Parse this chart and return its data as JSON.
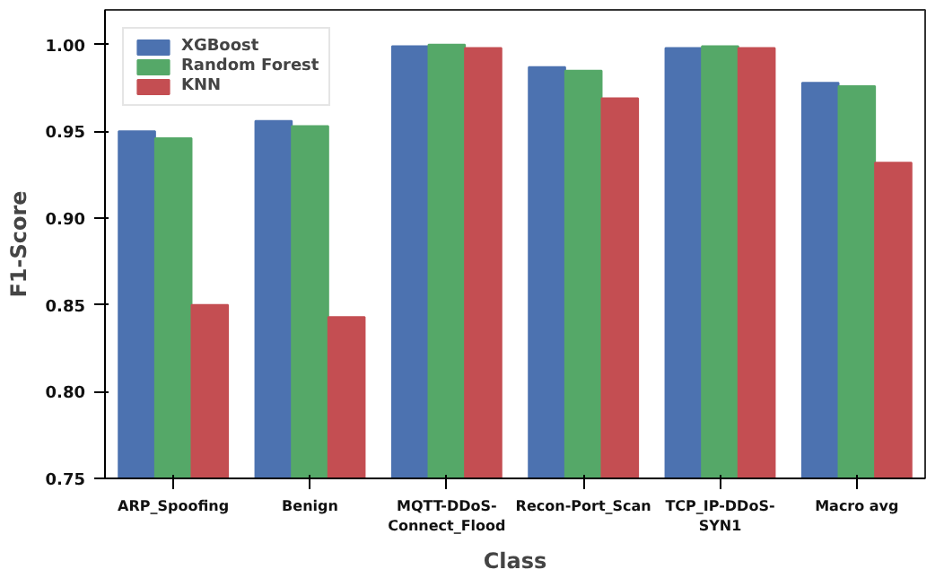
{
  "chart_data": {
    "type": "bar",
    "xlabel": "Class",
    "ylabel": "F1-Score",
    "categories": [
      "ARP_Spoofing",
      "Benign",
      "MQTT-DDoS-\nConnect_Flood",
      "Recon-Port_Scan",
      "TCP_IP-DDoS-\nSYN1",
      "Macro avg"
    ],
    "series": [
      {
        "name": "XGBoost",
        "color": "#4c72b0",
        "values": [
          0.95,
          0.956,
          0.999,
          0.987,
          0.998,
          0.978
        ]
      },
      {
        "name": "Random Forest",
        "color": "#55a868",
        "values": [
          0.946,
          0.953,
          1.0,
          0.985,
          0.999,
          0.976
        ]
      },
      {
        "name": "KNN",
        "color": "#c44e52",
        "values": [
          0.85,
          0.843,
          0.998,
          0.969,
          0.998,
          0.932
        ]
      }
    ],
    "ylim": [
      0.75,
      1.02
    ],
    "yticks": [
      {
        "value": 0.75,
        "label": "0.75"
      },
      {
        "value": 0.8,
        "label": "0.80"
      },
      {
        "value": 0.85,
        "label": "0.85"
      },
      {
        "value": 0.9,
        "label": "0.90"
      },
      {
        "value": 0.95,
        "label": "0.95"
      },
      {
        "value": 1.0,
        "label": "1.00"
      }
    ],
    "grid": false,
    "legend": "top left"
  }
}
